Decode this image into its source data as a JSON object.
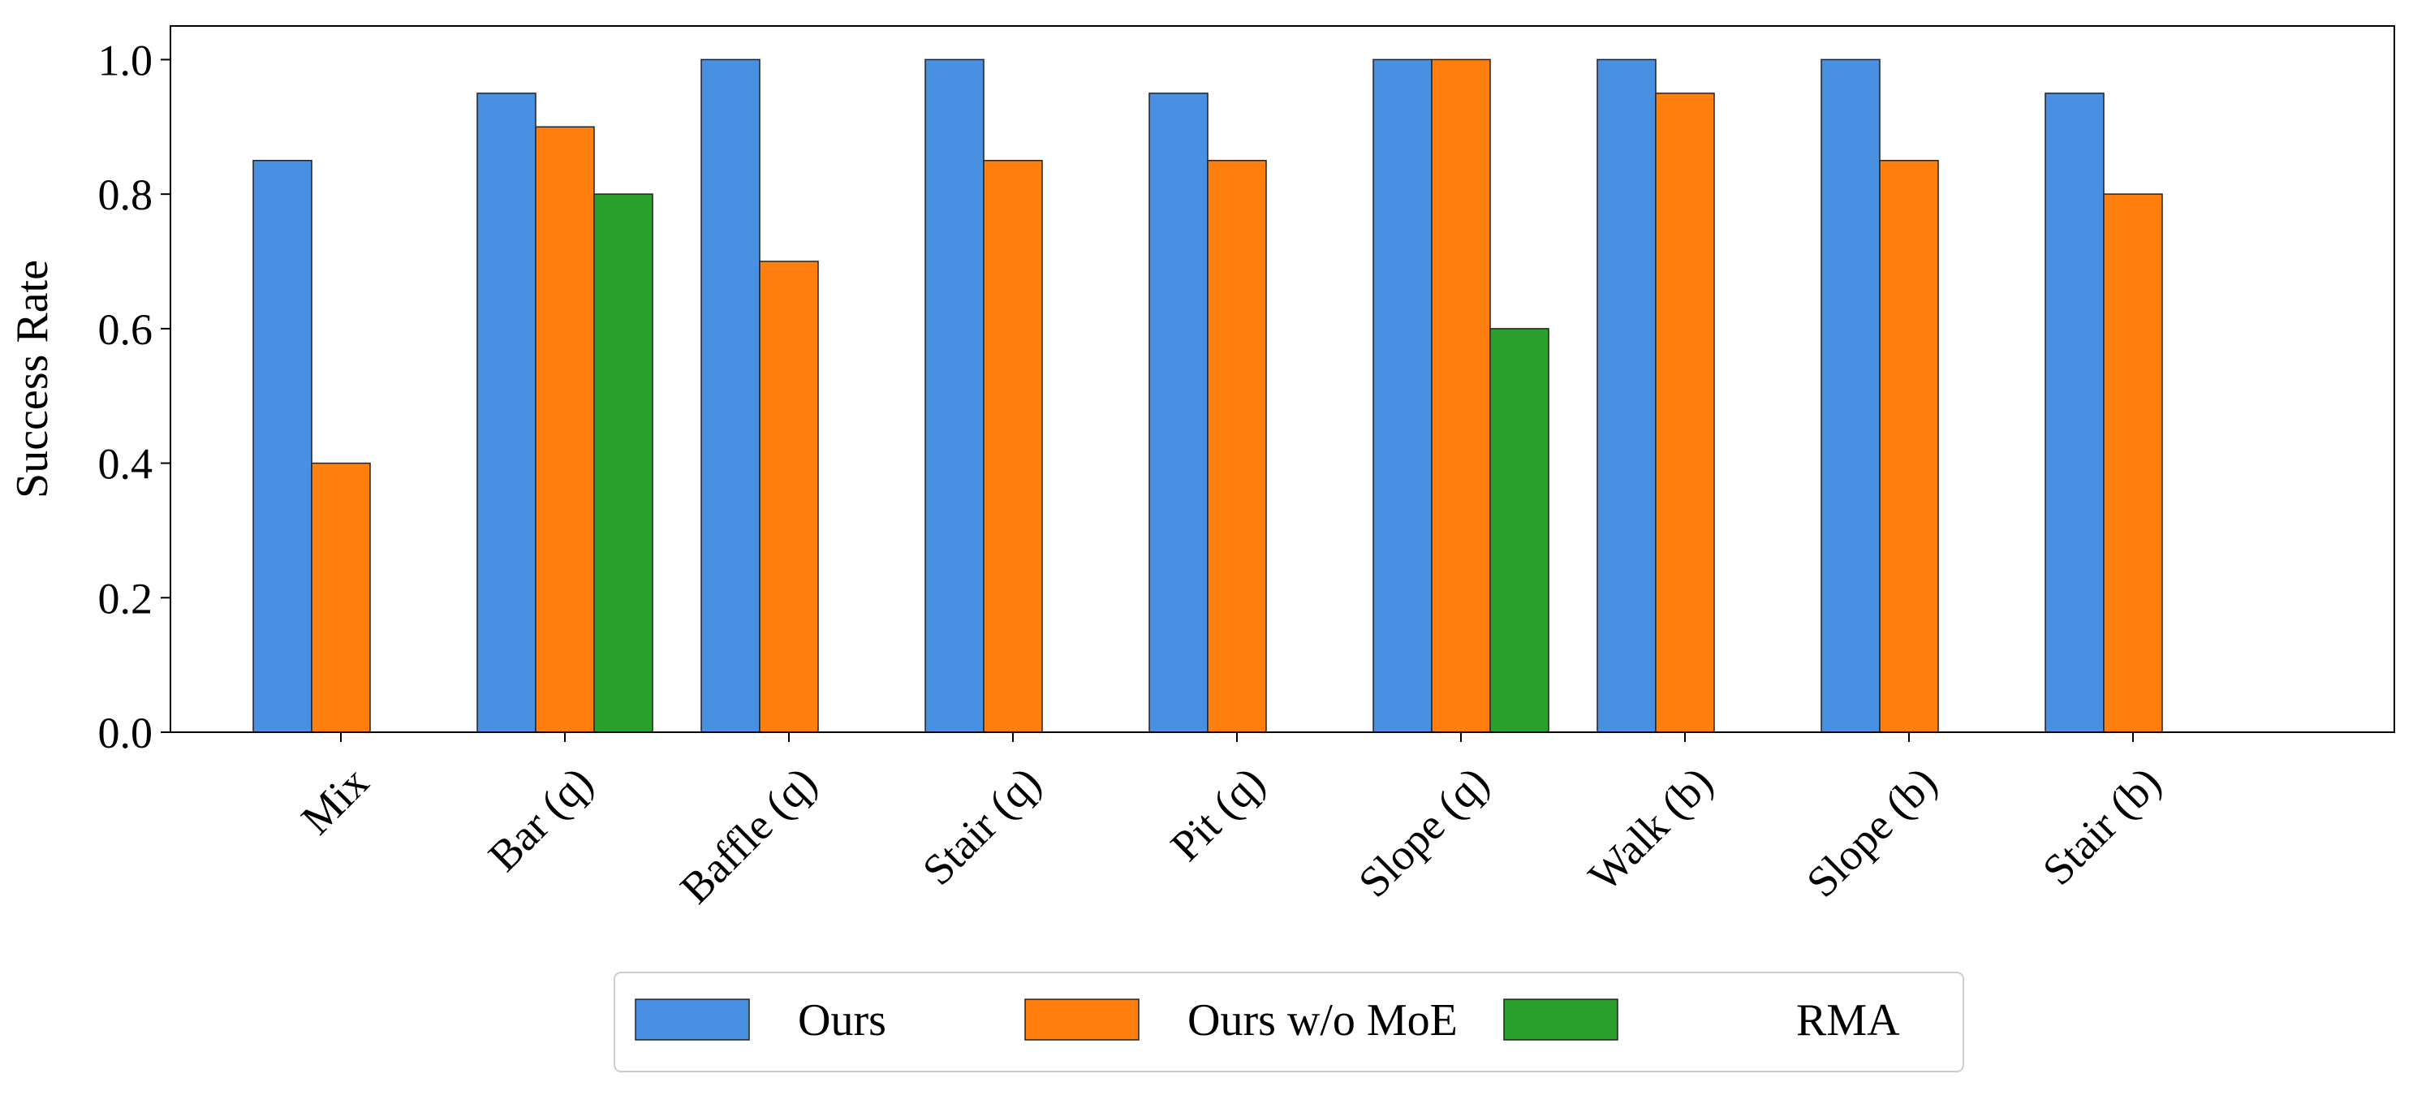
{
  "chart_data": {
    "type": "bar",
    "title": "",
    "xlabel": "",
    "ylabel": "Success Rate",
    "ylim": [
      0,
      1.05
    ],
    "yticks": [
      "0.0",
      "0.2",
      "0.4",
      "0.6",
      "0.8",
      "1.0"
    ],
    "grid": false,
    "legend_position": "bottom-center",
    "categories": [
      "Mix",
      "Bar (q)",
      "Baffle (q)",
      "Stair (q)",
      "Pit (q)",
      "Slope (q)",
      "Walk (b)",
      "Slope (b)",
      "Stair (b)"
    ],
    "series": [
      {
        "name": "Ours",
        "color": "#4a90e2",
        "values": [
          0.85,
          0.95,
          1.0,
          1.0,
          0.95,
          1.0,
          1.0,
          1.0,
          0.95
        ]
      },
      {
        "name": "Ours w/o MoE",
        "color": "#ff7f0e",
        "values": [
          0.4,
          0.9,
          0.7,
          0.85,
          0.85,
          1.0,
          0.95,
          0.85,
          0.8
        ]
      },
      {
        "name": "RMA",
        "color": "#2ca02c",
        "values": [
          0,
          0.8,
          0,
          0,
          0,
          0.6,
          0,
          0,
          0
        ]
      }
    ]
  }
}
